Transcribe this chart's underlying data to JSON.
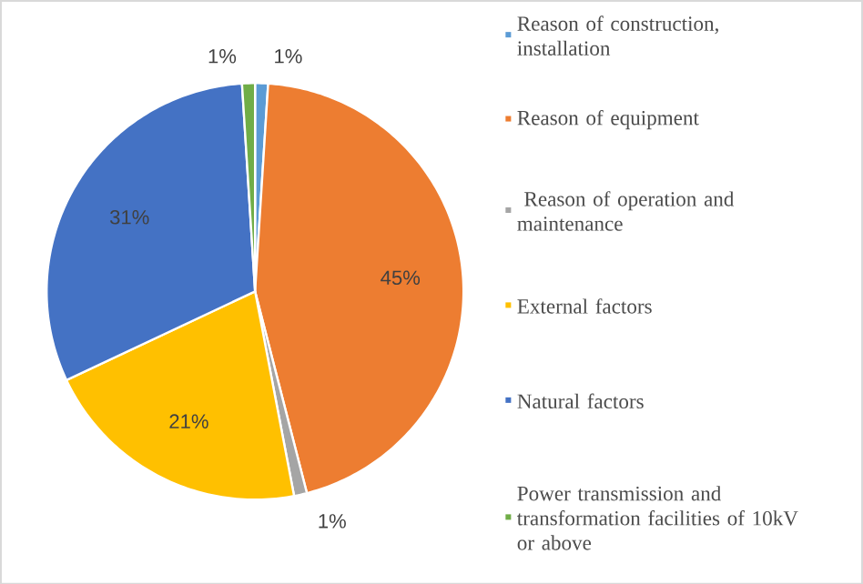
{
  "chart_data": {
    "type": "pie",
    "categories": [
      "Reason of construction, installation",
      "Reason of equipment",
      " Reason of operation and maintenance",
      "External factors",
      "Natural factors",
      "Power transmission and transformation facilities of 10kV or above"
    ],
    "values": [
      1,
      45,
      1,
      21,
      31,
      1
    ],
    "colors": [
      "#5b9bd5",
      "#ed7d31",
      "#a5a5a5",
      "#ffc000",
      "#4472c4",
      "#70ad47"
    ],
    "value_labels": [
      "1%",
      "45%",
      "1%",
      "21%",
      "31%",
      "1%"
    ],
    "legend": "right"
  }
}
